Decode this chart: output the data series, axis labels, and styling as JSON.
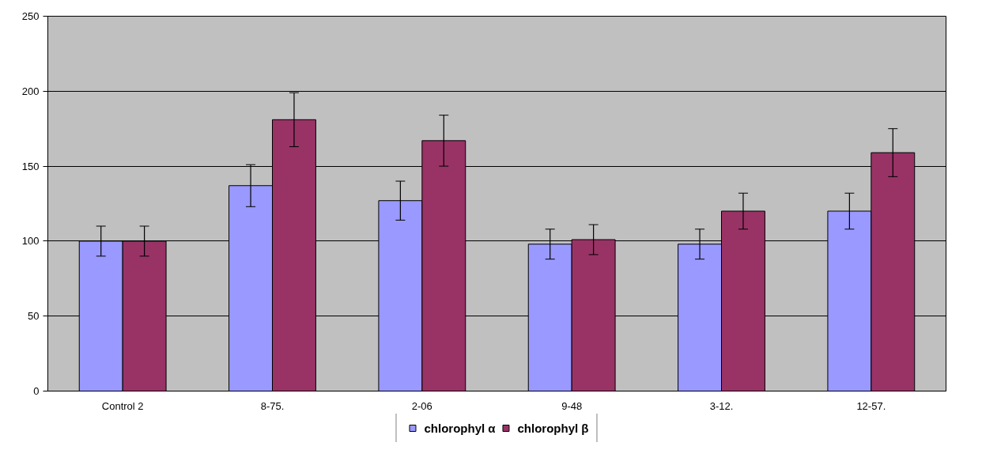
{
  "chart_data": {
    "type": "bar",
    "categories": [
      "Control 2",
      "8-75.",
      "2-06",
      "9-48",
      "3-12.",
      "12-57."
    ],
    "series": [
      {
        "name": "chlorophyl α",
        "color": "#9999ff",
        "values": [
          100,
          137,
          127,
          98,
          98,
          120
        ],
        "errors": [
          10,
          14,
          13,
          10,
          10,
          12
        ]
      },
      {
        "name": "chlorophyl β",
        "color": "#993366",
        "values": [
          100,
          181,
          167,
          101,
          120,
          159
        ],
        "errors": [
          10,
          18,
          17,
          10,
          12,
          16
        ]
      }
    ],
    "ylim": [
      0,
      250
    ],
    "yticks": [
      0,
      50,
      100,
      150,
      200,
      250
    ],
    "grid": "y",
    "legend": "bottom"
  }
}
